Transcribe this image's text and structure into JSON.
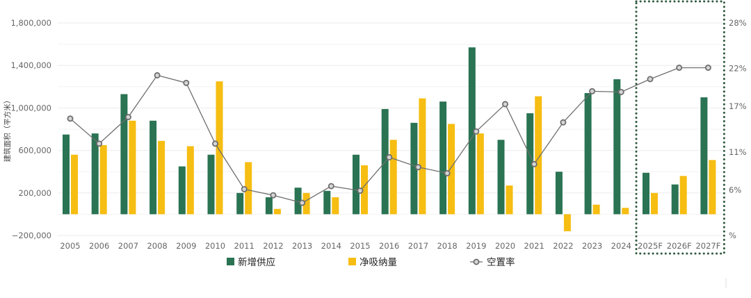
{
  "chart_data": {
    "type": "bar",
    "ylabel": "建筑面积（平方米）",
    "categories": [
      "2005",
      "2006",
      "2007",
      "2008",
      "2009",
      "2010",
      "2011",
      "2012",
      "2013",
      "2014",
      "2015",
      "2016",
      "2017",
      "2018",
      "2019",
      "2020",
      "2021",
      "2022",
      "2023",
      "2024",
      "2025F",
      "2026F",
      "2027F"
    ],
    "forecast_categories": [
      "2025F",
      "2026F",
      "2027F"
    ],
    "y_ticks": [
      "1,800,000",
      "1,400,000",
      "1,000,000",
      "600,000",
      "200,000",
      "−200,000"
    ],
    "y_tick_values": [
      1800000,
      1400000,
      1000000,
      600000,
      200000,
      -200000
    ],
    "y_right_ticks": [
      "28%",
      "22%",
      "17%",
      "11%",
      "6%",
      "%"
    ],
    "y_right_tick_values": [
      28,
      22,
      17,
      11,
      6,
      0
    ],
    "ylim": [
      -200000,
      1800000
    ],
    "y2lim": [
      0,
      28
    ],
    "grid": true,
    "legend_position": "bottom",
    "series": [
      {
        "name": "新增供应",
        "type": "bar",
        "axis": "left",
        "color": "#2a7353",
        "values": [
          750000,
          760000,
          1130000,
          880000,
          450000,
          560000,
          200000,
          160000,
          250000,
          220000,
          560000,
          990000,
          860000,
          1060000,
          1570000,
          700000,
          950000,
          400000,
          1140000,
          1270000,
          390000,
          280000,
          1100000
        ]
      },
      {
        "name": "净吸纳量",
        "type": "bar",
        "axis": "left",
        "color": "#f6bd12",
        "values": [
          560000,
          650000,
          880000,
          690000,
          640000,
          1250000,
          490000,
          50000,
          200000,
          160000,
          460000,
          700000,
          1090000,
          850000,
          760000,
          270000,
          1110000,
          -160000,
          90000,
          60000,
          200000,
          360000,
          510000
        ]
      },
      {
        "name": "空置率",
        "type": "line",
        "axis": "right",
        "color": "#6e6e6e",
        "values": [
          15.4,
          12.1,
          15.6,
          21.1,
          20.1,
          12.1,
          6.1,
          5.3,
          4.3,
          6.5,
          5.9,
          10.3,
          9.0,
          8.2,
          13.7,
          17.3,
          9.4,
          14.9,
          19.0,
          18.9,
          20.6,
          22.1,
          22.1
        ]
      }
    ]
  },
  "colors": {
    "supply": "#2a7353",
    "absorption": "#f6bd12",
    "vacancy": "#6e6e6e",
    "forecast_box": "#2f5a3e",
    "grid": "#ebebeb"
  }
}
